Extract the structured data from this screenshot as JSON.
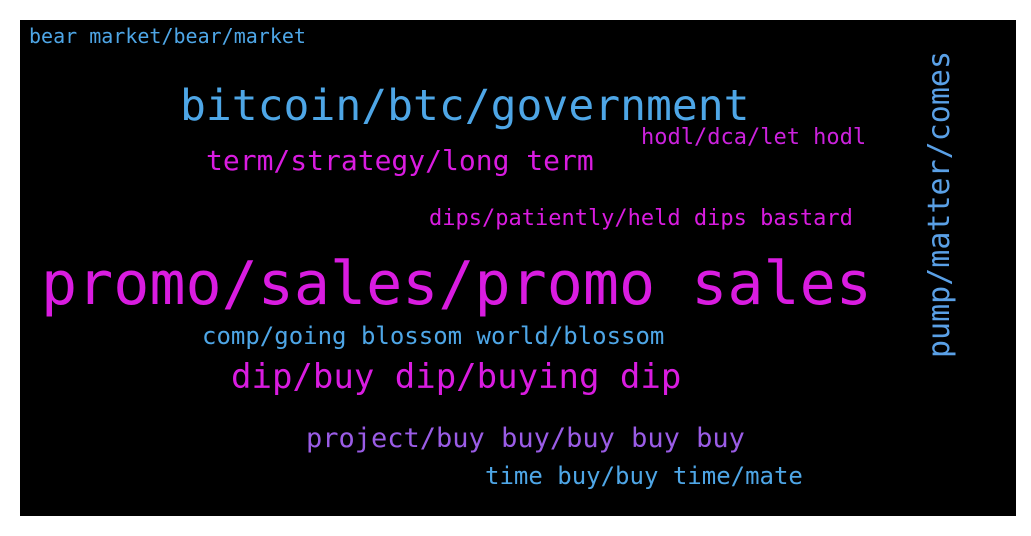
{
  "words": [
    {
      "text": "bear market/bear/market",
      "color": "#4ea6e6"
    },
    {
      "text": "bitcoin/btc/government",
      "color": "#4ea6e6"
    },
    {
      "text": "hodl/dca/let hodl",
      "color": "#cc22dd"
    },
    {
      "text": "term/strategy/long term",
      "color": "#d91ce0"
    },
    {
      "text": "dips/patiently/held dips bastard",
      "color": "#d91ce0"
    },
    {
      "text": "promo/sales/promo sales",
      "color": "#d91ce0"
    },
    {
      "text": "comp/going blossom world/blossom",
      "color": "#4ea6e6"
    },
    {
      "text": "dip/buy dip/buying dip",
      "color": "#d91ce0"
    },
    {
      "text": "project/buy buy/buy buy buy",
      "color": "#9a5ce6"
    },
    {
      "text": "time buy/buy time/mate",
      "color": "#4ea6e6"
    },
    {
      "text": "pump/matter/comes",
      "color": "#5aa0e6"
    }
  ]
}
